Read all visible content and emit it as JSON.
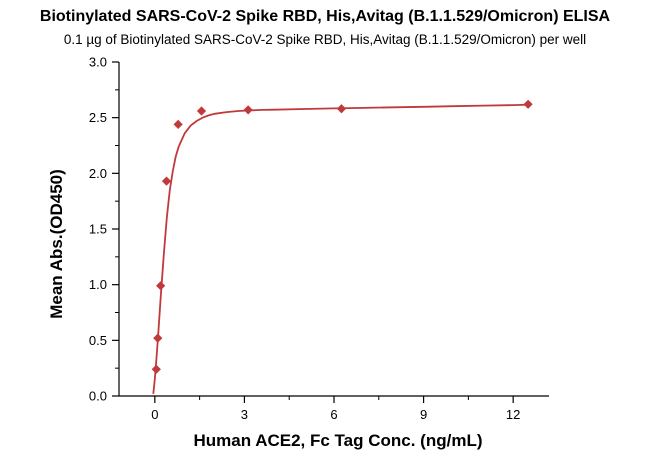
{
  "chart_data": {
    "type": "scatter",
    "title": "Biotinylated SARS-CoV-2 Spike RBD, His,Avitag (B.1.1.529/Omicron) ELISA",
    "subtitle": "0.1 µg of Biotinylated SARS-CoV-2 Spike RBD, His,Avitag (B.1.1.529/Omicron) per well",
    "xlabel": "Human ACE2, Fc Tag Conc. (ng/mL)",
    "ylabel": "Mean Abs.(OD450)",
    "xlim": [
      -1.2,
      13.2
    ],
    "ylim": [
      0,
      3.0
    ],
    "x_ticks": [
      0,
      3,
      6,
      9,
      12
    ],
    "y_ticks": [
      "0.0",
      "0.5",
      "1.0",
      "1.5",
      "2.0",
      "2.5",
      "3.0"
    ],
    "grid": false,
    "color": "#c0393b",
    "series": [
      {
        "x": [
          0.049,
          0.098,
          0.195,
          0.391,
          0.781,
          1.563,
          3.125,
          6.25,
          12.5
        ],
        "y": [
          0.24,
          0.52,
          0.99,
          1.93,
          2.44,
          2.56,
          2.57,
          2.58,
          2.62
        ],
        "marker": "diamond"
      }
    ],
    "fit_curve": {
      "x": [
        -0.05,
        0.0,
        0.05,
        0.1,
        0.15,
        0.2,
        0.3,
        0.4,
        0.5,
        0.6,
        0.7,
        0.8,
        1.0,
        1.2,
        1.4,
        1.6,
        1.8,
        2.0,
        2.4,
        2.8,
        3.2,
        3.6,
        4.0,
        5.0,
        6.0,
        7.0,
        8.0,
        9.0,
        10.0,
        11.0,
        12.0,
        12.6
      ],
      "y": [
        0.02,
        0.15,
        0.32,
        0.5,
        0.7,
        0.9,
        1.27,
        1.6,
        1.85,
        2.02,
        2.15,
        2.24,
        2.36,
        2.43,
        2.47,
        2.5,
        2.52,
        2.535,
        2.55,
        2.56,
        2.565,
        2.57,
        2.572,
        2.578,
        2.583,
        2.588,
        2.593,
        2.598,
        2.603,
        2.608,
        2.613,
        2.617
      ]
    }
  }
}
